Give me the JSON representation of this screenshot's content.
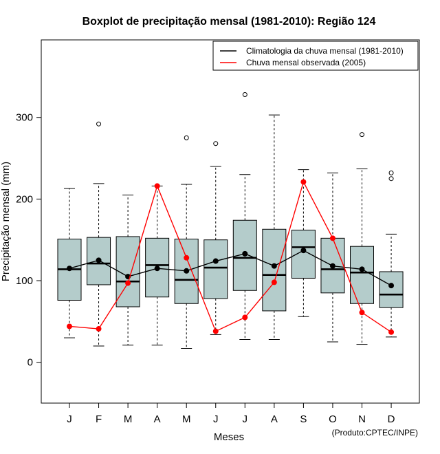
{
  "chart_data": {
    "type": "boxplot",
    "title": "Boxplot de precipitação mensal (1981-2010): Região 124",
    "xlabel": "Meses",
    "ylabel": "Precipitação mensal (mm)",
    "ylim": [
      -50,
      395
    ],
    "yticks": [
      0,
      100,
      200,
      300
    ],
    "categories": [
      "J",
      "F",
      "M",
      "A",
      "M",
      "J",
      "J",
      "A",
      "S",
      "O",
      "N",
      "D"
    ],
    "boxes": [
      {
        "whisker_low": 30,
        "q1": 76,
        "median": 114,
        "q3": 151,
        "whisker_high": 213,
        "outliers": []
      },
      {
        "whisker_low": 20,
        "q1": 95,
        "median": 121,
        "q3": 153,
        "whisker_high": 219,
        "outliers": [
          292
        ]
      },
      {
        "whisker_low": 21,
        "q1": 68,
        "median": 99,
        "q3": 154,
        "whisker_high": 205,
        "outliers": []
      },
      {
        "whisker_low": 21,
        "q1": 80,
        "median": 119,
        "q3": 152,
        "whisker_high": 216,
        "outliers": []
      },
      {
        "whisker_low": 17,
        "q1": 72,
        "median": 101,
        "q3": 151,
        "whisker_high": 218,
        "outliers": [
          275
        ]
      },
      {
        "whisker_low": 34,
        "q1": 78,
        "median": 116,
        "q3": 150,
        "whisker_high": 240,
        "outliers": [
          268
        ]
      },
      {
        "whisker_low": 28,
        "q1": 88,
        "median": 128,
        "q3": 174,
        "whisker_high": 230,
        "outliers": [
          328
        ]
      },
      {
        "whisker_low": 28,
        "q1": 63,
        "median": 107,
        "q3": 163,
        "whisker_high": 303,
        "outliers": []
      },
      {
        "whisker_low": 56,
        "q1": 103,
        "median": 141,
        "q3": 162,
        "whisker_high": 236,
        "outliers": []
      },
      {
        "whisker_low": 25,
        "q1": 85,
        "median": 114,
        "q3": 152,
        "whisker_high": 232,
        "outliers": []
      },
      {
        "whisker_low": 22,
        "q1": 72,
        "median": 110,
        "q3": 142,
        "whisker_high": 237,
        "outliers": [
          279
        ]
      },
      {
        "whisker_low": 31,
        "q1": 67,
        "median": 83,
        "q3": 111,
        "whisker_high": 157,
        "outliers": [
          225,
          232
        ]
      }
    ],
    "series": [
      {
        "name": "Climatologia da chuva mensal (1981-2010)",
        "color": "#000000",
        "values": [
          115,
          125,
          105,
          115,
          112,
          124,
          133,
          118,
          137,
          118,
          114,
          94
        ]
      },
      {
        "name": "Chuva mensal observada (2005)",
        "color": "#ff0000",
        "values": [
          44,
          41,
          97,
          216,
          128,
          38,
          55,
          98,
          221,
          152,
          61,
          37
        ]
      }
    ],
    "box_fill": "#b4cccb",
    "legend_position": "top-right",
    "footnote": "(Produto:CPTEC/INPE)"
  }
}
